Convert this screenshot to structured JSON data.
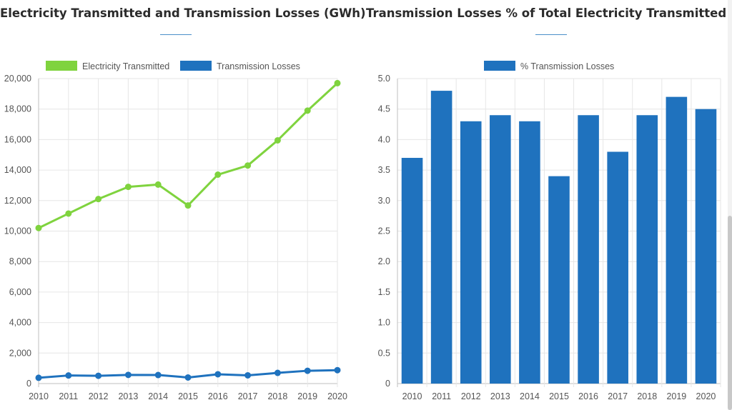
{
  "colors": {
    "transmitted": "#7fd33e",
    "losses": "#1f72be",
    "grid": "#e6e6e6",
    "axis": "#bfbfbf"
  },
  "chart_data": [
    {
      "type": "line",
      "title": "Electricity Transmitted and Transmission Losses (GWh)",
      "x": [
        "2010",
        "2011",
        "2012",
        "2013",
        "2014",
        "2015",
        "2016",
        "2017",
        "2018",
        "2019",
        "2020"
      ],
      "series": [
        {
          "name": "Electricity Transmitted",
          "values": [
            10200,
            11150,
            12100,
            12900,
            13050,
            11680,
            13700,
            14300,
            15950,
            17900,
            19700
          ]
        },
        {
          "name": "Transmission Losses",
          "values": [
            380,
            530,
            510,
            570,
            560,
            400,
            610,
            540,
            700,
            840,
            880
          ]
        }
      ],
      "ylim": [
        0,
        20000
      ],
      "yticks": [
        "0",
        "2,000",
        "4,000",
        "6,000",
        "8,000",
        "10,000",
        "12,000",
        "14,000",
        "16,000",
        "18,000",
        "20,000"
      ],
      "grid": true,
      "legend": "top-center"
    },
    {
      "type": "bar",
      "title": "Transmission Losses % of Total Electricity Transmitted",
      "categories": [
        "2010",
        "2011",
        "2012",
        "2013",
        "2014",
        "2015",
        "2016",
        "2017",
        "2018",
        "2019",
        "2020"
      ],
      "series": [
        {
          "name": "% Transmission Losses",
          "values": [
            3.7,
            4.8,
            4.3,
            4.4,
            4.3,
            3.4,
            4.4,
            3.8,
            4.4,
            4.7,
            4.5
          ]
        }
      ],
      "ylim": [
        0,
        5.0
      ],
      "yticks": [
        "0",
        "0.5",
        "1.0",
        "1.5",
        "2.0",
        "2.5",
        "3.0",
        "3.5",
        "4.0",
        "4.5",
        "5.0"
      ],
      "grid": true,
      "legend": "top-center"
    }
  ]
}
